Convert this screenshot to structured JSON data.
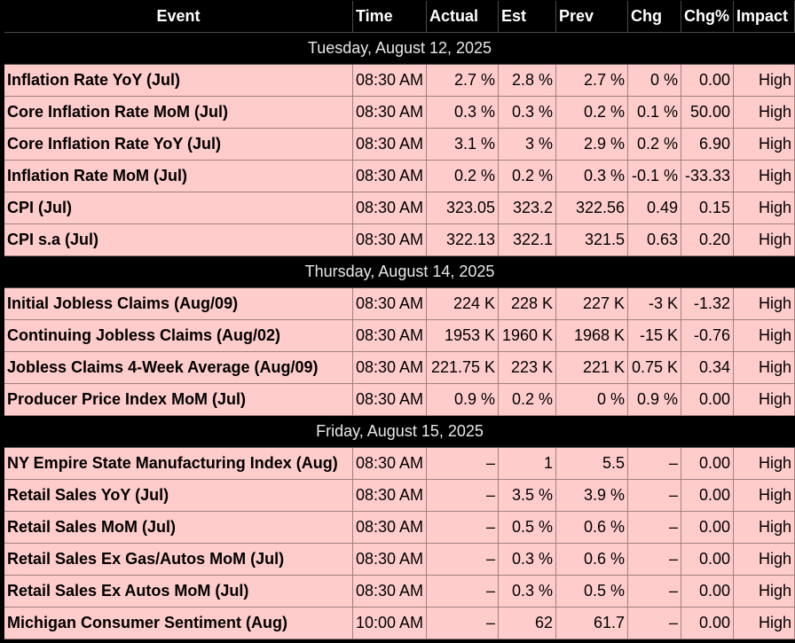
{
  "headers": [
    "Event",
    "Time",
    "Actual",
    "Est",
    "Prev",
    "Chg",
    "Chg%",
    "Impact"
  ],
  "groups": [
    {
      "date": "Tuesday, August 12, 2025",
      "rows": [
        [
          "Inflation Rate YoY (Jul)",
          "08:30 AM",
          "2.7 %",
          "2.8 %",
          "2.7 %",
          "0 %",
          "0.00",
          "High"
        ],
        [
          "Core Inflation Rate MoM (Jul)",
          "08:30 AM",
          "0.3 %",
          "0.3 %",
          "0.2 %",
          "0.1 %",
          "50.00",
          "High"
        ],
        [
          "Core Inflation Rate YoY (Jul)",
          "08:30 AM",
          "3.1 %",
          "3 %",
          "2.9 %",
          "0.2 %",
          "6.90",
          "High"
        ],
        [
          "Inflation Rate MoM (Jul)",
          "08:30 AM",
          "0.2 %",
          "0.2 %",
          "0.3 %",
          "-0.1 %",
          "-33.33",
          "High"
        ],
        [
          "CPI (Jul)",
          "08:30 AM",
          "323.05",
          "323.2",
          "322.56",
          "0.49",
          "0.15",
          "High"
        ],
        [
          "CPI s.a (Jul)",
          "08:30 AM",
          "322.13",
          "322.1",
          "321.5",
          "0.63",
          "0.20",
          "High"
        ]
      ]
    },
    {
      "date": "Thursday, August 14, 2025",
      "rows": [
        [
          "Initial Jobless Claims (Aug/09)",
          "08:30 AM",
          "224 K",
          "228 K",
          "227 K",
          "-3 K",
          "-1.32",
          "High"
        ],
        [
          "Continuing Jobless Claims (Aug/02)",
          "08:30 AM",
          "1953 K",
          "1960 K",
          "1968 K",
          "-15 K",
          "-0.76",
          "High"
        ],
        [
          "Jobless Claims 4-Week Average (Aug/09)",
          "08:30 AM",
          "221.75 K",
          "223 K",
          "221 K",
          "0.75 K",
          "0.34",
          "High"
        ],
        [
          "Producer Price Index MoM (Jul)",
          "08:30 AM",
          "0.9 %",
          "0.2 %",
          "0 %",
          "0.9 %",
          "0.00",
          "High"
        ]
      ]
    },
    {
      "date": "Friday, August 15, 2025",
      "rows": [
        [
          "NY Empire State Manufacturing Index (Aug)",
          "08:30 AM",
          "–",
          "1",
          "5.5",
          "–",
          "0.00",
          "High"
        ],
        [
          "Retail Sales YoY (Jul)",
          "08:30 AM",
          "–",
          "3.5 %",
          "3.9 %",
          "–",
          "0.00",
          "High"
        ],
        [
          "Retail Sales MoM (Jul)",
          "08:30 AM",
          "–",
          "0.5 %",
          "0.6 %",
          "–",
          "0.00",
          "High"
        ],
        [
          "Retail Sales Ex Gas/Autos MoM (Jul)",
          "08:30 AM",
          "–",
          "0.3 %",
          "0.6 %",
          "–",
          "0.00",
          "High"
        ],
        [
          "Retail Sales Ex Autos MoM (Jul)",
          "08:30 AM",
          "–",
          "0.3 %",
          "0.5 %",
          "–",
          "0.00",
          "High"
        ],
        [
          "Michigan Consumer Sentiment (Aug)",
          "10:00 AM",
          "–",
          "62",
          "61.7",
          "–",
          "0.00",
          "High"
        ]
      ]
    }
  ]
}
